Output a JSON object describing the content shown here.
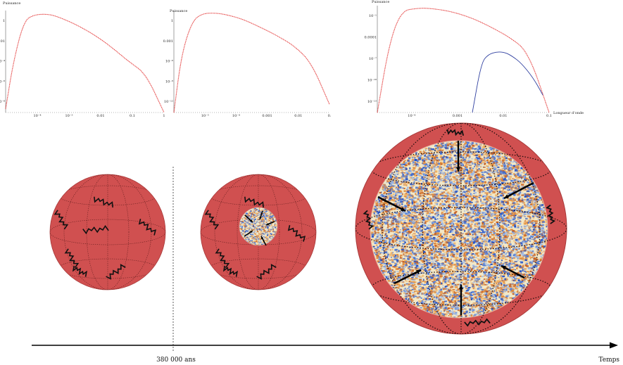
{
  "chart_data": [
    {
      "type": "line",
      "ylabel": "Puissance",
      "xlabel": "",
      "xscale": "log",
      "yscale": "log",
      "x_ticks": [
        "10⁻⁴",
        "10⁻³",
        "0.01",
        "0.1",
        "1"
      ],
      "y_ticks": [
        "1",
        "0.01",
        "10⁻⁴",
        "10⁻⁶",
        "10⁻⁸"
      ],
      "series": [
        {
          "color": "#e02020",
          "style": "dotted",
          "x": [
            3e-05,
            5e-05,
            0.0001,
            0.0002,
            0.0005,
            0.001,
            0.003,
            0.01,
            0.03,
            0.1,
            0.3,
            1
          ],
          "y": [
            1e-08,
            0.0001,
            0.3,
            1,
            1.1,
            0.6,
            0.15,
            0.02,
            0.002,
            0.0001,
            1e-05,
            5e-09
          ]
        }
      ]
    },
    {
      "type": "line",
      "ylabel": "Puissance",
      "xlabel": "",
      "xscale": "log",
      "yscale": "log",
      "x_ticks": [
        "10⁻⁵",
        "10⁻⁴",
        "0.001",
        "0.01",
        "0."
      ],
      "y_ticks": [
        "1",
        "0.001",
        "10⁻⁶",
        "10⁻⁹",
        "10⁻¹²"
      ],
      "series": [
        {
          "color": "#e02020",
          "style": "dotted",
          "x": [
            3e-06,
            5e-06,
            1e-05,
            2e-05,
            5e-05,
            0.0001,
            0.0003,
            0.001,
            0.003,
            0.01,
            0.03,
            0.1
          ],
          "y": [
            1e-12,
            1e-05,
            0.1,
            1,
            1.1,
            0.7,
            0.2,
            0.02,
            0.002,
            0.0001,
            1e-06,
            1e-11
          ]
        }
      ]
    },
    {
      "type": "line",
      "ylabel": "Puissance",
      "xlabel": "Longueur d'onde",
      "xscale": "log",
      "yscale": "log",
      "x_ticks": [
        "10⁻⁴",
        "0.001",
        "0.01",
        "0.1"
      ],
      "y_ticks": [
        "10⁻¹",
        "0.0001",
        "10⁻⁷",
        "10⁻¹⁰",
        "10⁻¹³"
      ],
      "series": [
        {
          "color": "#e02020",
          "style": "dotted",
          "x": [
            5e-06,
            1e-05,
            2e-05,
            5e-05,
            0.0001,
            0.0003,
            0.001,
            0.003,
            0.01,
            0.03,
            0.1
          ],
          "y": [
            1e-13,
            1e-05,
            0.05,
            0.1,
            0.1,
            0.05,
            0.01,
            0.001,
            5e-05,
            1e-06,
            1e-13
          ]
        },
        {
          "color": "#3040a0",
          "style": "solid",
          "x": [
            0.0012,
            0.002,
            0.003,
            0.005,
            0.008,
            0.012,
            0.02,
            0.04,
            0.07
          ],
          "y": [
            1e-13,
            5e-08,
            5e-07,
            1e-06,
            8e-07,
            3e-07,
            5e-08,
            1e-09,
            1e-11
          ]
        }
      ]
    }
  ],
  "timeline": {
    "marker_label": "380 000 ans",
    "axis_label": "Temps"
  },
  "colors": {
    "sphere": "#d05050",
    "sphere_dark": "#a83a3a",
    "wave": "#111111",
    "cmb_blue": "#2050c8",
    "cmb_orange": "#e08a3a",
    "cmb_cream": "#f2e8c8"
  }
}
